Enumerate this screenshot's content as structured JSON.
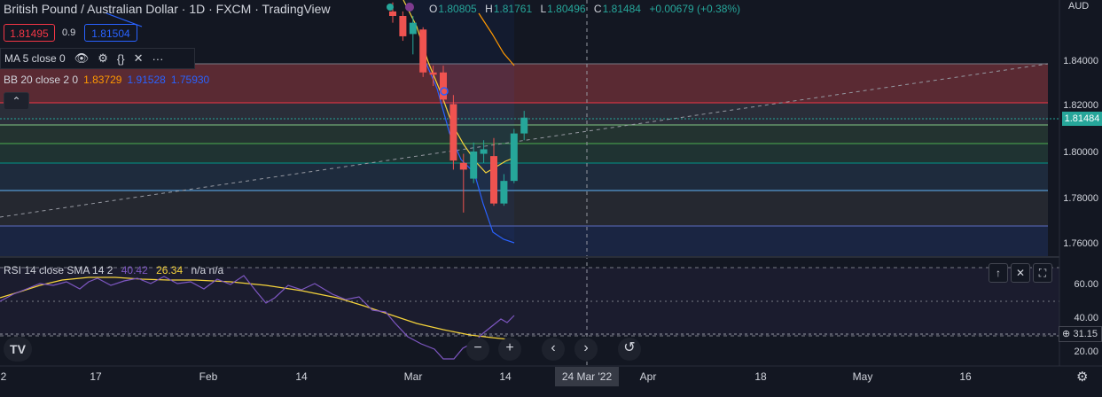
{
  "header": {
    "title": "British Pound / Australian Dollar · 1D · FXCM · TradingView",
    "ohlc": {
      "o_label": "O",
      "o": "1.80805",
      "h_label": "H",
      "h": "1.81761",
      "l_label": "L",
      "l": "1.80496",
      "c_label": "C",
      "c": "1.81484",
      "change": "+0.00679 (+0.38%)"
    },
    "bid": "1.81495",
    "spread": "0.9",
    "ask": "1.81504"
  },
  "indicators": {
    "ma": {
      "label": "MA 5 close 0"
    },
    "bb": {
      "label": "BB 20 close 2 0",
      "basis": "1.83729",
      "upper": "1.91528",
      "lower": "1.75930"
    },
    "rsi": {
      "label": "RSI 14 close SMA 14 2",
      "value": "40.42",
      "ma": "26.34",
      "extra": "n/a  n/a"
    }
  },
  "price_axis": {
    "currency": "AUD",
    "labels": [
      "1.84000",
      "1.82000",
      "1.80000",
      "1.78000",
      "1.76000"
    ],
    "current": "1.81484"
  },
  "rsi_axis": {
    "labels": [
      "60.00",
      "40.00",
      "20.00"
    ],
    "crosshair_value": "31.15"
  },
  "time_axis": {
    "labels": [
      "2",
      "17",
      "Feb",
      "14",
      "Mar",
      "14",
      "Apr",
      "18",
      "May",
      "16"
    ],
    "crosshair_date": "24 Mar '22"
  },
  "controls": {
    "zoom_out": "−",
    "zoom_in": "+",
    "scroll_left": "‹",
    "scroll_right": "›",
    "reset": "↺",
    "logo": "TV"
  },
  "colors": {
    "up": "#26a69a",
    "down": "#ef5350",
    "bb_basis": "#ff9800",
    "bb_band": "#2962ff",
    "ma": "#f5d33b",
    "rsi": "#7e57c2"
  },
  "chart_data": {
    "type": "candlestick",
    "currency": "AUD",
    "ylim": [
      1.755,
      1.86
    ],
    "candles": [
      {
        "o": 1.862,
        "h": 1.866,
        "l": 1.857,
        "c": 1.86
      },
      {
        "o": 1.86,
        "h": 1.862,
        "l": 1.849,
        "c": 1.851
      },
      {
        "o": 1.852,
        "h": 1.86,
        "l": 1.843,
        "c": 1.857
      },
      {
        "o": 1.854,
        "h": 1.855,
        "l": 1.833,
        "c": 1.835
      },
      {
        "o": 1.835,
        "h": 1.838,
        "l": 1.829,
        "c": 1.834
      },
      {
        "o": 1.835,
        "h": 1.838,
        "l": 1.822,
        "c": 1.823
      },
      {
        "o": 1.821,
        "h": 1.825,
        "l": 1.792,
        "c": 1.796
      },
      {
        "o": 1.795,
        "h": 1.799,
        "l": 1.773,
        "c": 1.792
      },
      {
        "o": 1.788,
        "h": 1.804,
        "l": 1.786,
        "c": 1.8
      },
      {
        "o": 1.799,
        "h": 1.805,
        "l": 1.795,
        "c": 1.801
      },
      {
        "o": 1.798,
        "h": 1.806,
        "l": 1.776,
        "c": 1.777
      },
      {
        "o": 1.777,
        "h": 1.79,
        "l": 1.776,
        "c": 1.787
      },
      {
        "o": 1.787,
        "h": 1.81,
        "l": 1.786,
        "c": 1.808
      },
      {
        "o": 1.808,
        "h": 1.818,
        "l": 1.805,
        "c": 1.815
      }
    ],
    "fib_levels": [
      1.839,
      1.821,
      1.811,
      1.804,
      1.795,
      1.783,
      1.768
    ],
    "rsi_levels": {
      "upper": 70,
      "middle": 50,
      "lower": 30
    }
  }
}
